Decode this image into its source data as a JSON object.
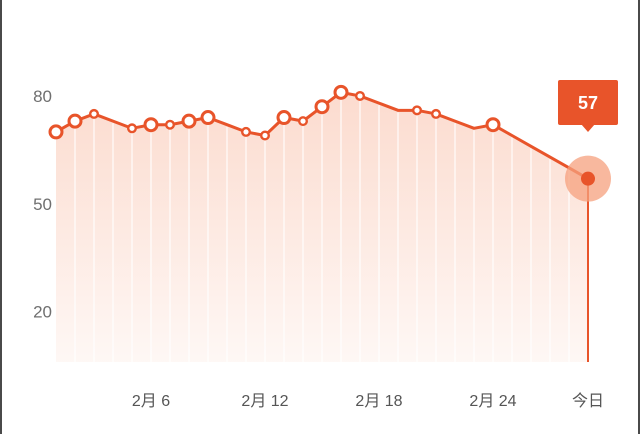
{
  "chart_data": {
    "type": "line",
    "y_ticks": [
      "80",
      "50",
      "20"
    ],
    "ylim": [
      6,
      90
    ],
    "x_tick_labels": [
      {
        "i": 5,
        "label": "2月 6"
      },
      {
        "i": 11,
        "label": "2月 12"
      },
      {
        "i": 17,
        "label": "2月 18"
      },
      {
        "i": 23,
        "label": "2月 24"
      },
      {
        "i": 28,
        "label": "今日"
      }
    ],
    "series": [
      {
        "values": [
          70,
          73,
          75,
          null,
          71,
          72,
          72,
          73,
          74,
          null,
          70,
          69,
          74,
          73,
          77,
          81,
          80,
          null,
          76,
          76,
          75,
          null,
          71,
          72,
          null,
          null,
          null,
          null,
          57
        ],
        "markers": [
          "big",
          "big",
          "small",
          null,
          "small",
          "big",
          "small",
          "big",
          "big",
          null,
          "small",
          "small",
          "big",
          "small",
          "big",
          "big",
          "small",
          null,
          null,
          "small",
          "small",
          null,
          null,
          "big",
          null,
          null,
          null,
          null,
          "current"
        ]
      }
    ],
    "tooltip": {
      "label": "57",
      "index": 28
    },
    "colors": {
      "line": "#e8542a",
      "fill_top": "#fbd5c6",
      "highlight_halo": "#f6a07e",
      "tooltip_bg": "#e8542a"
    },
    "grid": "vertical"
  }
}
